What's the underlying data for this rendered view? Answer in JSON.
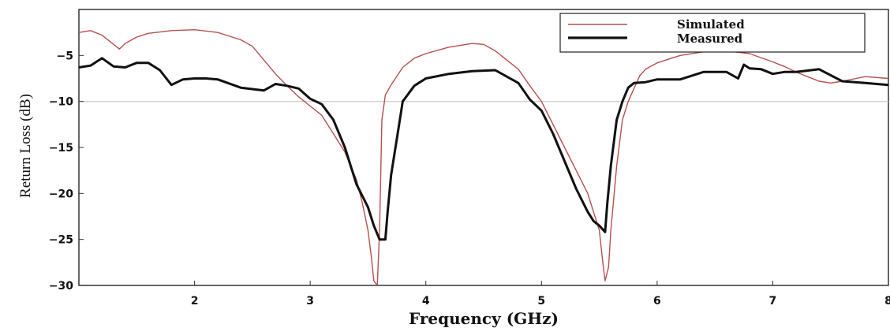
{
  "chart_data": {
    "type": "line",
    "title": "",
    "xlabel": "Frequency (GHz)",
    "ylabel": "Return Loss (dB)",
    "xlim": [
      1,
      8
    ],
    "ylim": [
      -30,
      0
    ],
    "x_ticks": [
      2,
      3,
      4,
      5,
      6,
      7,
      8
    ],
    "x_tick_labels": [
      "2",
      "3",
      "4",
      "5",
      "6",
      "7",
      "8"
    ],
    "y_ticks": [
      -5,
      -10,
      -15,
      -20,
      -25,
      -30
    ],
    "y_tick_labels": [
      "−5",
      "−10",
      "−15",
      "−20",
      "−25",
      "−30"
    ],
    "reference_line": -10,
    "grid": false,
    "legend_position": "top-right",
    "series": [
      {
        "name": "Simulated",
        "color": "#b5504f",
        "x": [
          1.0,
          1.1,
          1.2,
          1.3,
          1.35,
          1.4,
          1.5,
          1.6,
          1.8,
          2.0,
          2.2,
          2.4,
          2.5,
          2.6,
          2.7,
          2.8,
          2.9,
          3.0,
          3.1,
          3.2,
          3.3,
          3.4,
          3.45,
          3.5,
          3.53,
          3.55,
          3.58,
          3.6,
          3.62,
          3.65,
          3.7,
          3.8,
          3.9,
          4.0,
          4.2,
          4.4,
          4.5,
          4.6,
          4.8,
          4.9,
          5.0,
          5.1,
          5.2,
          5.3,
          5.4,
          5.45,
          5.5,
          5.53,
          5.55,
          5.58,
          5.6,
          5.65,
          5.7,
          5.75,
          5.8,
          5.85,
          5.9,
          6.0,
          6.2,
          6.4,
          6.6,
          6.8,
          7.0,
          7.1,
          7.2,
          7.3,
          7.4,
          7.5,
          7.6,
          7.8,
          8.0
        ],
        "y": [
          -2.5,
          -2.3,
          -2.8,
          -3.8,
          -4.3,
          -3.7,
          -3.0,
          -2.6,
          -2.3,
          -2.2,
          -2.5,
          -3.3,
          -4.0,
          -5.5,
          -7.0,
          -8.3,
          -9.5,
          -10.5,
          -11.5,
          -13.5,
          -15.5,
          -18.5,
          -21.0,
          -24.0,
          -27.0,
          -29.5,
          -30.0,
          -24.0,
          -12.0,
          -9.3,
          -8.2,
          -6.3,
          -5.3,
          -4.8,
          -4.1,
          -3.7,
          -3.8,
          -4.5,
          -6.5,
          -8.3,
          -10.0,
          -12.5,
          -15.0,
          -17.5,
          -20.0,
          -22.0,
          -24.0,
          -27.5,
          -29.5,
          -28.0,
          -24.0,
          -17.0,
          -12.0,
          -10.0,
          -8.6,
          -7.2,
          -6.5,
          -5.8,
          -5.0,
          -4.6,
          -4.5,
          -4.8,
          -5.7,
          -6.2,
          -6.8,
          -7.3,
          -7.8,
          -8.0,
          -7.8,
          -7.3,
          -7.5
        ]
      },
      {
        "name": "Measured",
        "color": "#111111",
        "x": [
          1.0,
          1.1,
          1.2,
          1.3,
          1.4,
          1.5,
          1.6,
          1.7,
          1.8,
          1.9,
          2.0,
          2.1,
          2.2,
          2.4,
          2.6,
          2.7,
          2.8,
          2.9,
          3.0,
          3.1,
          3.2,
          3.3,
          3.4,
          3.5,
          3.55,
          3.6,
          3.65,
          3.67,
          3.7,
          3.75,
          3.8,
          3.9,
          4.0,
          4.2,
          4.4,
          4.6,
          4.8,
          4.9,
          5.0,
          5.1,
          5.2,
          5.3,
          5.4,
          5.45,
          5.5,
          5.55,
          5.57,
          5.6,
          5.65,
          5.7,
          5.75,
          5.8,
          5.9,
          6.0,
          6.2,
          6.4,
          6.6,
          6.7,
          6.75,
          6.8,
          6.9,
          7.0,
          7.1,
          7.2,
          7.4,
          7.6,
          7.8,
          8.0
        ],
        "y": [
          -6.3,
          -6.1,
          -5.3,
          -6.2,
          -6.3,
          -5.8,
          -5.8,
          -6.6,
          -8.2,
          -7.6,
          -7.5,
          -7.5,
          -7.6,
          -8.5,
          -8.8,
          -8.1,
          -8.3,
          -8.6,
          -9.7,
          -10.3,
          -12.0,
          -15.0,
          -19.0,
          -21.5,
          -23.5,
          -25.0,
          -25.0,
          -22.0,
          -18.0,
          -14.0,
          -10.0,
          -8.3,
          -7.5,
          -7.0,
          -6.7,
          -6.6,
          -8.0,
          -9.8,
          -11.0,
          -13.5,
          -16.5,
          -19.5,
          -22.0,
          -23.0,
          -23.5,
          -24.2,
          -21.0,
          -17.0,
          -12.0,
          -10.0,
          -8.5,
          -8.0,
          -7.9,
          -7.6,
          -7.6,
          -6.8,
          -6.8,
          -7.5,
          -6.0,
          -6.4,
          -6.5,
          -7.0,
          -6.8,
          -6.8,
          -6.5,
          -7.8,
          -8.0,
          -8.2
        ]
      }
    ]
  }
}
